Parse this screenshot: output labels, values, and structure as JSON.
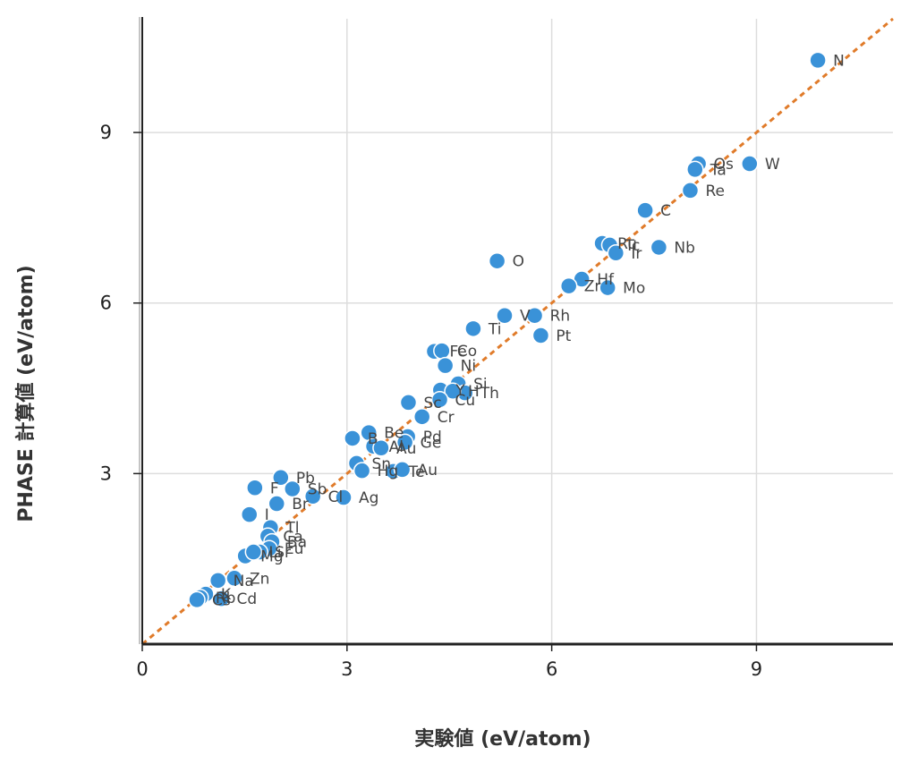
{
  "colors": {
    "point": "#3a92d8",
    "diagonal": "#e07b2a",
    "grid": "#dddddd",
    "axis": "#222222"
  },
  "chart_data": {
    "type": "scatter",
    "xlabel": "実験値 (eV/atom)",
    "ylabel": "PHASE 計算値 (eV/atom)",
    "xlim": [
      0,
      11
    ],
    "ylim": [
      0,
      11
    ],
    "xticks": [
      0,
      3,
      6,
      9
    ],
    "yticks": [
      3,
      6,
      9
    ],
    "grid": true,
    "reference_line": "y = x",
    "points": [
      {
        "label": "N",
        "x": 9.9,
        "y": 10.27
      },
      {
        "label": "W",
        "x": 8.9,
        "y": 8.45
      },
      {
        "label": "Os",
        "x": 8.15,
        "y": 8.45
      },
      {
        "label": "Ta",
        "x": 8.1,
        "y": 8.35
      },
      {
        "label": "Re",
        "x": 8.03,
        "y": 7.98
      },
      {
        "label": "C",
        "x": 7.37,
        "y": 7.63
      },
      {
        "label": "Nb",
        "x": 7.57,
        "y": 6.98
      },
      {
        "label": "Ru",
        "x": 6.74,
        "y": 7.05
      },
      {
        "label": "Tc",
        "x": 6.85,
        "y": 7.02
      },
      {
        "label": "Ir",
        "x": 6.94,
        "y": 6.88
      },
      {
        "label": "O",
        "x": 5.2,
        "y": 6.74
      },
      {
        "label": "Hf",
        "x": 6.44,
        "y": 6.42
      },
      {
        "label": "Zr",
        "x": 6.25,
        "y": 6.3
      },
      {
        "label": "Mo",
        "x": 6.82,
        "y": 6.27
      },
      {
        "label": "V",
        "x": 5.31,
        "y": 5.78
      },
      {
        "label": "Rh",
        "x": 5.75,
        "y": 5.78
      },
      {
        "label": "Ti",
        "x": 4.85,
        "y": 5.55
      },
      {
        "label": "Pt",
        "x": 5.84,
        "y": 5.43
      },
      {
        "label": "Fe",
        "x": 4.28,
        "y": 5.15
      },
      {
        "label": "Co",
        "x": 4.39,
        "y": 5.16
      },
      {
        "label": "Ni",
        "x": 4.44,
        "y": 4.9
      },
      {
        "label": "Si",
        "x": 4.63,
        "y": 4.58
      },
      {
        "label": "Y",
        "x": 4.37,
        "y": 4.47
      },
      {
        "label": "Th",
        "x": 4.73,
        "y": 4.42
      },
      {
        "label": "H",
        "x": 4.55,
        "y": 4.45
      },
      {
        "label": "Sc",
        "x": 3.9,
        "y": 4.25
      },
      {
        "label": "Cr",
        "x": 4.1,
        "y": 4.0
      },
      {
        "label": "Cu",
        "x": 4.36,
        "y": 4.3
      },
      {
        "label": "Be",
        "x": 3.32,
        "y": 3.72
      },
      {
        "label": "B",
        "x": 3.08,
        "y": 3.62
      },
      {
        "label": "Pd",
        "x": 3.89,
        "y": 3.65
      },
      {
        "label": "Ge",
        "x": 3.85,
        "y": 3.55
      },
      {
        "label": "Al",
        "x": 3.39,
        "y": 3.48
      },
      {
        "label": "Au",
        "x": 3.5,
        "y": 3.45
      },
      {
        "label": "Sn",
        "x": 3.14,
        "y": 3.18
      },
      {
        "label": "Hg",
        "x": 3.22,
        "y": 3.05
      },
      {
        "label": "Te",
        "x": 3.68,
        "y": 3.04
      },
      {
        "label": "Au",
        "x": 3.81,
        "y": 3.07
      },
      {
        "label": "Pb",
        "x": 2.03,
        "y": 2.93
      },
      {
        "label": "Sb",
        "x": 2.2,
        "y": 2.73
      },
      {
        "label": "F",
        "x": 1.65,
        "y": 2.75
      },
      {
        "label": "Cl",
        "x": 2.5,
        "y": 2.6
      },
      {
        "label": "Ag",
        "x": 2.95,
        "y": 2.58
      },
      {
        "label": "Br",
        "x": 1.97,
        "y": 2.47
      },
      {
        "label": "I",
        "x": 1.57,
        "y": 2.28
      },
      {
        "label": "Tl",
        "x": 1.88,
        "y": 2.05
      },
      {
        "label": "Ca",
        "x": 1.84,
        "y": 1.9
      },
      {
        "label": "Ba",
        "x": 1.9,
        "y": 1.8
      },
      {
        "label": "Eu",
        "x": 1.86,
        "y": 1.68
      },
      {
        "label": "Sr",
        "x": 1.72,
        "y": 1.62
      },
      {
        "label": "Mg",
        "x": 1.51,
        "y": 1.55
      },
      {
        "label": "Li",
        "x": 1.63,
        "y": 1.62
      },
      {
        "label": "Zn",
        "x": 1.35,
        "y": 1.16
      },
      {
        "label": "Na",
        "x": 1.11,
        "y": 1.12
      },
      {
        "label": "K",
        "x": 0.93,
        "y": 0.88
      },
      {
        "label": "Rb",
        "x": 0.85,
        "y": 0.82
      },
      {
        "label": "Cs",
        "x": 0.8,
        "y": 0.78
      },
      {
        "label": "Cd",
        "x": 1.16,
        "y": 0.8
      }
    ]
  }
}
